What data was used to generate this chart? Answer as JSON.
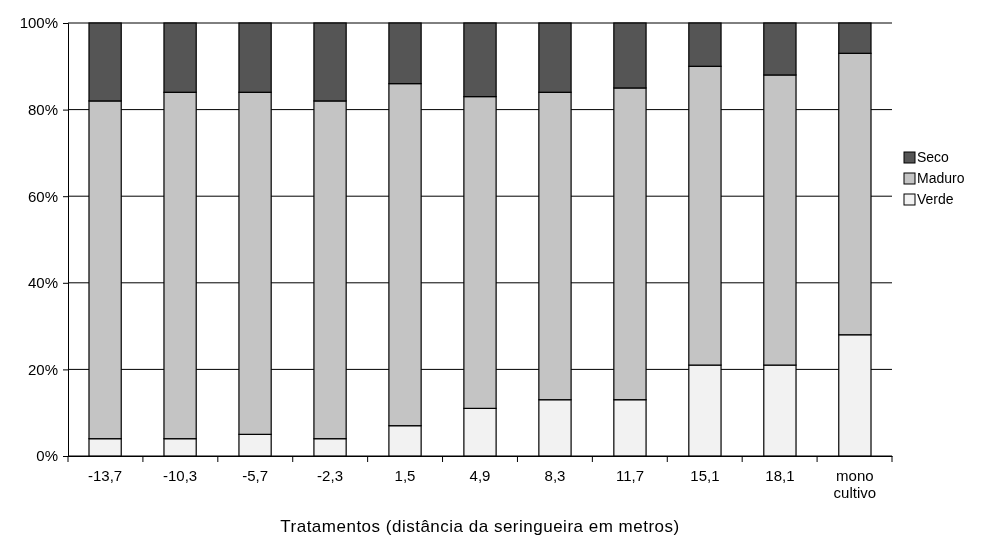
{
  "chart_data": {
    "type": "bar",
    "stacked": true,
    "xlabel": "Tratamentos (distância da seringueira em metros)",
    "categories": [
      "-13,7",
      "-10,3",
      "-5,7",
      "-2,3",
      "1,5",
      "4,9",
      "8,3",
      "11,7",
      "15,1",
      "18,1",
      "mono cultivo"
    ],
    "series": [
      {
        "name": "Verde",
        "color": "#f2f2f2",
        "values": [
          4,
          4,
          5,
          4,
          7,
          11,
          13,
          13,
          21,
          21,
          28
        ]
      },
      {
        "name": "Maduro",
        "color": "#c4c4c4",
        "values": [
          78,
          80,
          79,
          78,
          79,
          72,
          71,
          72,
          69,
          67,
          65
        ]
      },
      {
        "name": "Seco",
        "color": "#555555",
        "values": [
          18,
          16,
          16,
          18,
          14,
          17,
          16,
          15,
          10,
          12,
          7
        ]
      }
    ],
    "ylim": [
      0,
      100
    ],
    "yticks": [
      {
        "value": 0,
        "label": "0%"
      },
      {
        "value": 20,
        "label": "20%"
      },
      {
        "value": 40,
        "label": "40%"
      },
      {
        "value": 60,
        "label": "60%"
      },
      {
        "value": 80,
        "label": "80%"
      },
      {
        "value": 100,
        "label": "100%"
      }
    ],
    "grid": "y",
    "legend": "right"
  }
}
